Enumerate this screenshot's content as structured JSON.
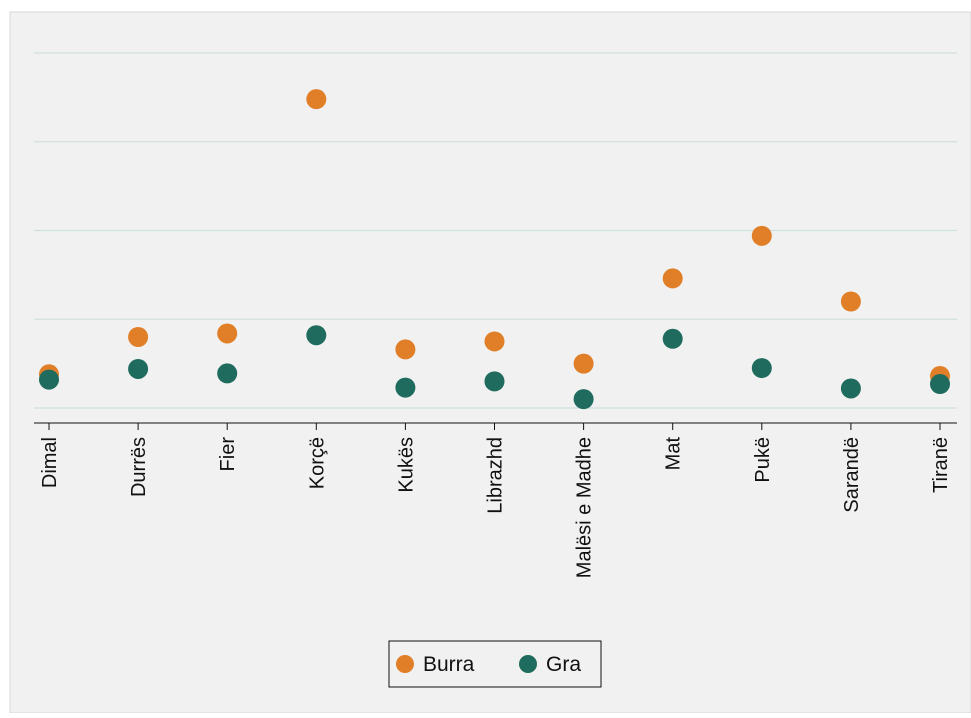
{
  "chart_data": {
    "type": "scatter",
    "title": "",
    "xlabel": "",
    "ylabel": "",
    "categories": [
      "Dimal",
      "Durrës",
      "Fier",
      "Korçë",
      "Kukës",
      "Librazhd",
      "Malësi e Madhe",
      "Mat",
      "Pukë",
      "Sarandë",
      "Tiranë"
    ],
    "series": [
      {
        "name": "Burra",
        "color": "#e07f27",
        "values": [
          0.38,
          0.8,
          0.84,
          3.48,
          0.66,
          0.75,
          0.5,
          1.46,
          1.94,
          1.2,
          0.36
        ]
      },
      {
        "name": "Gra",
        "color": "#1f6b5e",
        "values": [
          0.32,
          0.44,
          0.39,
          0.82,
          0.23,
          0.3,
          0.1,
          0.78,
          0.45,
          0.22,
          0.27
        ]
      }
    ],
    "ylim": [
      0,
      4
    ],
    "y_gridlines": [
      0,
      1,
      2,
      3,
      4
    ],
    "y_tick_labels_shown": false,
    "grid": true,
    "legend": {
      "position": "bottom-center",
      "entries": [
        "Burra",
        "Gra"
      ]
    }
  }
}
